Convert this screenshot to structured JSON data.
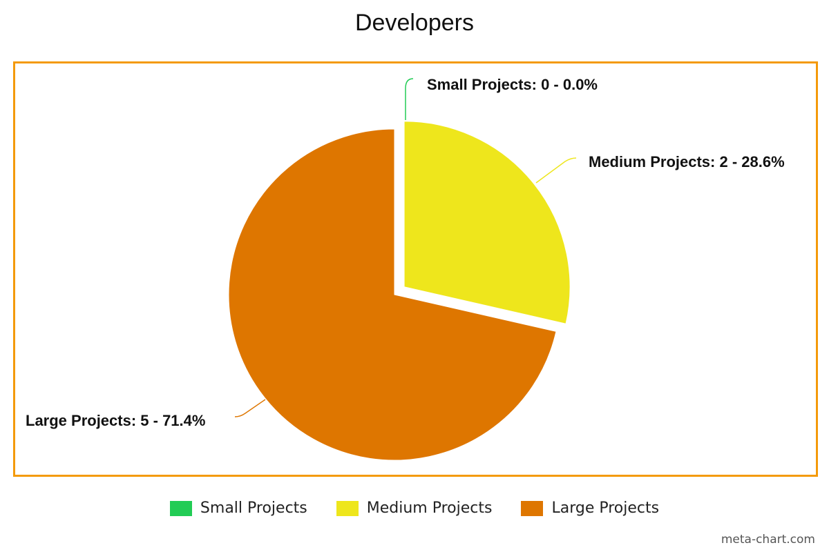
{
  "chart_data": {
    "type": "pie",
    "title": "Developers",
    "slices": [
      {
        "name": "Small Projects",
        "value": 0,
        "percent": 0.0,
        "label": "Small Projects: 0 - 0.0%",
        "color": "#22cc55"
      },
      {
        "name": "Medium Projects",
        "value": 2,
        "percent": 28.6,
        "label": "Medium Projects: 2 - 28.6%",
        "color": "#eee61c"
      },
      {
        "name": "Large Projects",
        "value": 5,
        "percent": 71.4,
        "label": "Large Projects: 5 - 71.4%",
        "color": "#de7600"
      }
    ],
    "legend": [
      "Small Projects",
      "Medium Projects",
      "Large Projects"
    ],
    "legend_position": "bottom",
    "frame_color": "#f49a0a"
  },
  "watermark": "meta-chart.com"
}
